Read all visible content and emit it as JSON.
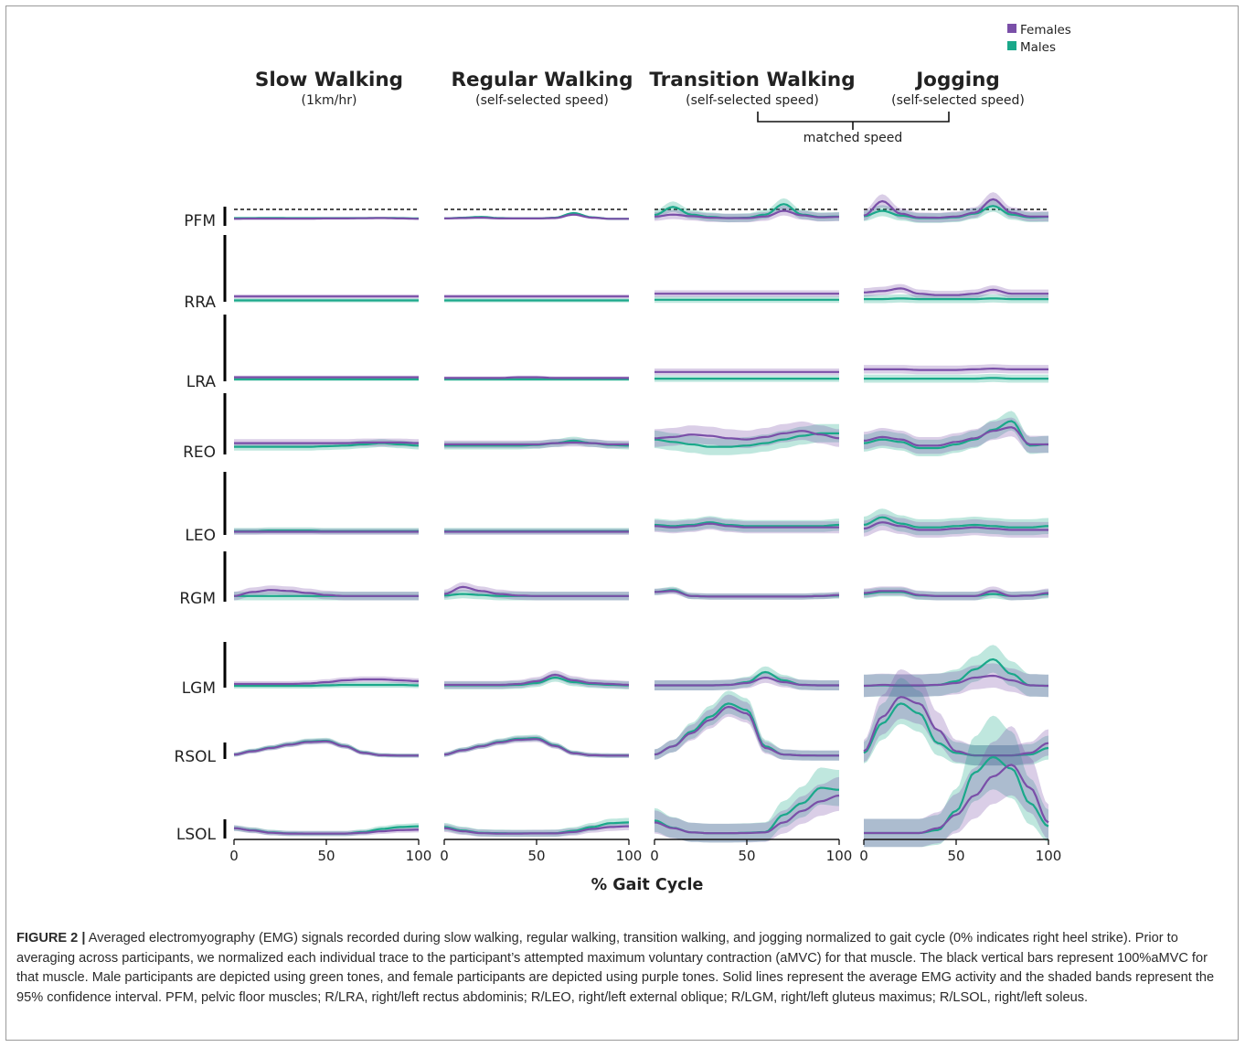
{
  "chart_data": {
    "type": "line",
    "legend": {
      "position": "top-right",
      "entries": [
        {
          "name": "Females",
          "color": "#7a4fa8"
        },
        {
          "name": "Males",
          "color": "#1aa88a"
        }
      ]
    },
    "columns": [
      {
        "title": "Slow Walking",
        "subtitle": "(1km/hr)"
      },
      {
        "title": "Regular Walking",
        "subtitle": "(self-selected speed)"
      },
      {
        "title": "Transition Walking",
        "subtitle": "(self-selected speed)"
      },
      {
        "title": "Jogging",
        "subtitle": "(self-selected speed)"
      }
    ],
    "bracket_label": "matched speed",
    "rows": [
      "PFM",
      "RRA",
      "LRA",
      "REO",
      "LEO",
      "RGM",
      "LGM",
      "RSOL",
      "LSOL"
    ],
    "xlabel": "% Gait Cycle",
    "x_ticks": [
      "0",
      "50",
      "100"
    ],
    "xlim": [
      0,
      100
    ],
    "scale_note": "vertical bars = 100%aMVC per muscle; values below are fractions of that bar",
    "x": [
      0,
      10,
      20,
      30,
      40,
      50,
      60,
      70,
      80,
      90,
      100
    ],
    "series": [
      {
        "row": "PFM",
        "col": 0,
        "female": [
          0.08,
          0.09,
          0.09,
          0.09,
          0.09,
          0.1,
          0.1,
          0.11,
          0.12,
          0.1,
          0.08
        ],
        "male": [
          0.12,
          0.12,
          0.13,
          0.12,
          0.12,
          0.12,
          0.12,
          0.12,
          0.13,
          0.12,
          0.1
        ],
        "band": 0.06
      },
      {
        "row": "PFM",
        "col": 1,
        "female": [
          0.1,
          0.12,
          0.14,
          0.1,
          0.1,
          0.1,
          0.12,
          0.3,
          0.14,
          0.08,
          0.08
        ],
        "male": [
          0.1,
          0.14,
          0.18,
          0.12,
          0.1,
          0.1,
          0.14,
          0.38,
          0.16,
          0.08,
          0.08
        ],
        "band": 0.08
      },
      {
        "row": "PFM",
        "col": 2,
        "female": [
          0.2,
          0.3,
          0.22,
          0.14,
          0.12,
          0.12,
          0.2,
          0.5,
          0.26,
          0.16,
          0.18
        ],
        "male": [
          0.28,
          0.7,
          0.3,
          0.18,
          0.12,
          0.14,
          0.3,
          0.85,
          0.3,
          0.18,
          0.2
        ],
        "band": 0.35
      },
      {
        "row": "PFM",
        "col": 3,
        "female": [
          0.25,
          1.0,
          0.35,
          0.15,
          0.14,
          0.2,
          0.4,
          1.1,
          0.4,
          0.2,
          0.2
        ],
        "male": [
          0.22,
          0.5,
          0.25,
          0.12,
          0.12,
          0.16,
          0.35,
          0.75,
          0.3,
          0.16,
          0.18
        ],
        "band": 0.4
      },
      {
        "row": "RRA",
        "col": 0,
        "female": [
          0.08,
          0.08,
          0.08,
          0.08,
          0.08,
          0.08,
          0.08,
          0.08,
          0.08,
          0.08,
          0.08
        ],
        "male": [
          0.02,
          0.02,
          0.02,
          0.02,
          0.02,
          0.02,
          0.02,
          0.02,
          0.02,
          0.02,
          0.02
        ],
        "band": 0.05
      },
      {
        "row": "RRA",
        "col": 1,
        "female": [
          0.08,
          0.08,
          0.08,
          0.08,
          0.08,
          0.08,
          0.08,
          0.08,
          0.08,
          0.08,
          0.08
        ],
        "male": [
          0.02,
          0.02,
          0.02,
          0.02,
          0.02,
          0.02,
          0.02,
          0.02,
          0.02,
          0.02,
          0.02
        ],
        "band": 0.05
      },
      {
        "row": "RRA",
        "col": 2,
        "female": [
          0.12,
          0.12,
          0.12,
          0.12,
          0.12,
          0.12,
          0.12,
          0.12,
          0.12,
          0.12,
          0.12
        ],
        "male": [
          0.03,
          0.03,
          0.03,
          0.03,
          0.03,
          0.03,
          0.03,
          0.03,
          0.03,
          0.03,
          0.03
        ],
        "band": 0.08
      },
      {
        "row": "RRA",
        "col": 3,
        "female": [
          0.14,
          0.16,
          0.2,
          0.12,
          0.1,
          0.1,
          0.12,
          0.18,
          0.12,
          0.12,
          0.12
        ],
        "male": [
          0.04,
          0.04,
          0.05,
          0.04,
          0.04,
          0.04,
          0.04,
          0.05,
          0.04,
          0.04,
          0.04
        ],
        "band": 0.1
      },
      {
        "row": "LRA",
        "col": 0,
        "female": [
          0.06,
          0.06,
          0.06,
          0.06,
          0.06,
          0.06,
          0.06,
          0.06,
          0.06,
          0.06,
          0.06
        ],
        "male": [
          0.03,
          0.03,
          0.03,
          0.03,
          0.03,
          0.03,
          0.03,
          0.03,
          0.03,
          0.03,
          0.03
        ],
        "band": 0.04
      },
      {
        "row": "LRA",
        "col": 1,
        "female": [
          0.05,
          0.05,
          0.05,
          0.05,
          0.06,
          0.06,
          0.05,
          0.05,
          0.05,
          0.05,
          0.05
        ],
        "male": [
          0.03,
          0.03,
          0.03,
          0.03,
          0.03,
          0.03,
          0.03,
          0.03,
          0.03,
          0.03,
          0.03
        ],
        "band": 0.04
      },
      {
        "row": "LRA",
        "col": 2,
        "female": [
          0.14,
          0.14,
          0.14,
          0.14,
          0.14,
          0.14,
          0.14,
          0.14,
          0.14,
          0.14,
          0.14
        ],
        "male": [
          0.04,
          0.04,
          0.04,
          0.04,
          0.04,
          0.04,
          0.04,
          0.04,
          0.04,
          0.04,
          0.04
        ],
        "band": 0.08
      },
      {
        "row": "LRA",
        "col": 3,
        "female": [
          0.18,
          0.18,
          0.18,
          0.17,
          0.17,
          0.17,
          0.18,
          0.19,
          0.18,
          0.18,
          0.18
        ],
        "male": [
          0.04,
          0.04,
          0.04,
          0.04,
          0.04,
          0.04,
          0.04,
          0.05,
          0.04,
          0.04,
          0.04
        ],
        "band": 0.1
      },
      {
        "row": "REO",
        "col": 0,
        "female": [
          0.14,
          0.14,
          0.14,
          0.14,
          0.14,
          0.14,
          0.14,
          0.15,
          0.15,
          0.15,
          0.14
        ],
        "male": [
          0.08,
          0.08,
          0.08,
          0.08,
          0.08,
          0.09,
          0.1,
          0.12,
          0.14,
          0.12,
          0.1
        ],
        "band": 0.1
      },
      {
        "row": "REO",
        "col": 1,
        "female": [
          0.12,
          0.12,
          0.12,
          0.12,
          0.12,
          0.12,
          0.14,
          0.15,
          0.14,
          0.12,
          0.12
        ],
        "male": [
          0.1,
          0.1,
          0.1,
          0.1,
          0.1,
          0.11,
          0.14,
          0.18,
          0.14,
          0.11,
          0.1
        ],
        "band": 0.1
      },
      {
        "row": "REO",
        "col": 2,
        "female": [
          0.22,
          0.24,
          0.28,
          0.26,
          0.22,
          0.2,
          0.24,
          0.3,
          0.34,
          0.28,
          0.22
        ],
        "male": [
          0.2,
          0.16,
          0.12,
          0.08,
          0.08,
          0.1,
          0.14,
          0.2,
          0.26,
          0.3,
          0.3
        ],
        "band": 0.22
      },
      {
        "row": "REO",
        "col": 3,
        "female": [
          0.18,
          0.24,
          0.2,
          0.1,
          0.1,
          0.16,
          0.22,
          0.34,
          0.4,
          0.12,
          0.12
        ],
        "male": [
          0.14,
          0.2,
          0.16,
          0.06,
          0.06,
          0.12,
          0.2,
          0.36,
          0.5,
          0.1,
          0.12
        ],
        "band": 0.22
      },
      {
        "row": "LEO",
        "col": 0,
        "female": [
          0.05,
          0.05,
          0.05,
          0.05,
          0.05,
          0.05,
          0.05,
          0.05,
          0.05,
          0.05,
          0.05
        ],
        "male": [
          0.06,
          0.06,
          0.07,
          0.07,
          0.07,
          0.06,
          0.06,
          0.06,
          0.06,
          0.06,
          0.06
        ],
        "band": 0.08
      },
      {
        "row": "LEO",
        "col": 1,
        "female": [
          0.05,
          0.05,
          0.05,
          0.05,
          0.05,
          0.05,
          0.05,
          0.05,
          0.05,
          0.05,
          0.05
        ],
        "male": [
          0.06,
          0.06,
          0.06,
          0.06,
          0.06,
          0.06,
          0.06,
          0.06,
          0.06,
          0.06,
          0.06
        ],
        "band": 0.08
      },
      {
        "row": "LEO",
        "col": 2,
        "female": [
          0.14,
          0.12,
          0.14,
          0.18,
          0.14,
          0.12,
          0.12,
          0.12,
          0.12,
          0.12,
          0.12
        ],
        "male": [
          0.16,
          0.14,
          0.16,
          0.2,
          0.16,
          0.14,
          0.14,
          0.14,
          0.14,
          0.14,
          0.16
        ],
        "band": 0.15
      },
      {
        "row": "LEO",
        "col": 3,
        "female": [
          0.1,
          0.2,
          0.14,
          0.08,
          0.08,
          0.1,
          0.12,
          0.1,
          0.08,
          0.08,
          0.08
        ],
        "male": [
          0.16,
          0.28,
          0.18,
          0.12,
          0.12,
          0.14,
          0.16,
          0.14,
          0.12,
          0.12,
          0.14
        ],
        "band": 0.2
      },
      {
        "row": "RGM",
        "col": 0,
        "female": [
          0.04,
          0.12,
          0.16,
          0.14,
          0.1,
          0.06,
          0.04,
          0.04,
          0.04,
          0.04,
          0.04
        ],
        "male": [
          0.04,
          0.04,
          0.04,
          0.04,
          0.04,
          0.04,
          0.04,
          0.04,
          0.04,
          0.04,
          0.04
        ],
        "band": 0.14
      },
      {
        "row": "RGM",
        "col": 1,
        "female": [
          0.08,
          0.22,
          0.14,
          0.08,
          0.05,
          0.04,
          0.04,
          0.04,
          0.04,
          0.04,
          0.04
        ],
        "male": [
          0.05,
          0.08,
          0.06,
          0.04,
          0.04,
          0.04,
          0.04,
          0.04,
          0.04,
          0.04,
          0.04
        ],
        "band": 0.14
      },
      {
        "row": "RGM",
        "col": 2,
        "female": [
          0.12,
          0.14,
          0.04,
          0.03,
          0.03,
          0.03,
          0.03,
          0.03,
          0.03,
          0.04,
          0.06
        ],
        "male": [
          0.12,
          0.16,
          0.04,
          0.03,
          0.03,
          0.03,
          0.03,
          0.03,
          0.03,
          0.04,
          0.05
        ],
        "band": 0.1
      },
      {
        "row": "RGM",
        "col": 3,
        "female": [
          0.1,
          0.14,
          0.14,
          0.06,
          0.04,
          0.04,
          0.04,
          0.14,
          0.04,
          0.05,
          0.1
        ],
        "male": [
          0.08,
          0.12,
          0.12,
          0.05,
          0.04,
          0.04,
          0.04,
          0.08,
          0.04,
          0.05,
          0.08
        ],
        "band": 0.14
      },
      {
        "row": "LGM",
        "col": 0,
        "female": [
          0.08,
          0.08,
          0.08,
          0.08,
          0.09,
          0.12,
          0.16,
          0.18,
          0.18,
          0.16,
          0.14
        ],
        "male": [
          0.04,
          0.04,
          0.04,
          0.04,
          0.04,
          0.05,
          0.06,
          0.06,
          0.06,
          0.06,
          0.05
        ],
        "band": 0.1
      },
      {
        "row": "LGM",
        "col": 1,
        "female": [
          0.06,
          0.06,
          0.06,
          0.06,
          0.08,
          0.14,
          0.28,
          0.16,
          0.1,
          0.08,
          0.06
        ],
        "male": [
          0.05,
          0.05,
          0.05,
          0.05,
          0.06,
          0.1,
          0.22,
          0.12,
          0.08,
          0.06,
          0.05
        ],
        "band": 0.14
      },
      {
        "row": "LGM",
        "col": 2,
        "female": [
          0.05,
          0.05,
          0.05,
          0.05,
          0.06,
          0.1,
          0.22,
          0.12,
          0.06,
          0.05,
          0.05
        ],
        "male": [
          0.05,
          0.05,
          0.05,
          0.05,
          0.06,
          0.12,
          0.34,
          0.16,
          0.06,
          0.05,
          0.05
        ],
        "band": 0.18
      },
      {
        "row": "LGM",
        "col": 3,
        "female": [
          0.04,
          0.06,
          0.05,
          0.05,
          0.06,
          0.1,
          0.22,
          0.26,
          0.16,
          0.05,
          0.04
        ],
        "male": [
          0.04,
          0.05,
          0.04,
          0.04,
          0.06,
          0.14,
          0.4,
          0.62,
          0.3,
          0.05,
          0.04
        ],
        "band": 0.4
      },
      {
        "row": "RSOL",
        "col": 0,
        "female": [
          0.1,
          0.3,
          0.5,
          0.7,
          0.86,
          0.9,
          0.6,
          0.2,
          0.06,
          0.04,
          0.04
        ],
        "male": [
          0.1,
          0.32,
          0.52,
          0.72,
          0.9,
          0.94,
          0.62,
          0.22,
          0.06,
          0.04,
          0.04
        ],
        "band": 0.2
      },
      {
        "row": "RSOL",
        "col": 1,
        "female": [
          0.1,
          0.36,
          0.6,
          0.84,
          1.0,
          1.04,
          0.62,
          0.18,
          0.06,
          0.04,
          0.04
        ],
        "male": [
          0.1,
          0.38,
          0.62,
          0.88,
          1.06,
          1.1,
          0.66,
          0.2,
          0.06,
          0.04,
          0.04
        ],
        "band": 0.22
      },
      {
        "row": "RSOL",
        "col": 2,
        "female": [
          0.1,
          0.6,
          1.4,
          2.2,
          3.0,
          2.6,
          0.5,
          0.1,
          0.05,
          0.04,
          0.04
        ],
        "male": [
          0.1,
          0.6,
          1.5,
          2.4,
          3.2,
          2.8,
          0.6,
          0.1,
          0.05,
          0.04,
          0.04
        ],
        "band": 0.5
      },
      {
        "row": "RSOL",
        "col": 3,
        "female": [
          0.3,
          2.4,
          3.6,
          3.2,
          1.6,
          0.3,
          0.05,
          0.05,
          0.05,
          0.2,
          0.8
        ],
        "male": [
          0.2,
          2.0,
          3.2,
          2.6,
          0.8,
          0.2,
          0.05,
          0.05,
          0.05,
          0.1,
          0.5
        ],
        "band": 1.0
      },
      {
        "row": "LSOL",
        "col": 0,
        "female": [
          0.3,
          0.18,
          0.06,
          0.02,
          0.02,
          0.02,
          0.02,
          0.06,
          0.14,
          0.2,
          0.22
        ],
        "male": [
          0.3,
          0.2,
          0.08,
          0.03,
          0.02,
          0.02,
          0.02,
          0.1,
          0.26,
          0.36,
          0.4
        ],
        "band": 0.22
      },
      {
        "row": "LSOL",
        "col": 1,
        "female": [
          0.3,
          0.14,
          0.04,
          0.02,
          0.02,
          0.03,
          0.03,
          0.1,
          0.26,
          0.36,
          0.4
        ],
        "male": [
          0.36,
          0.18,
          0.06,
          0.04,
          0.03,
          0.03,
          0.04,
          0.16,
          0.36,
          0.56,
          0.6
        ],
        "band": 0.3
      },
      {
        "row": "LSOL",
        "col": 2,
        "female": [
          0.6,
          0.3,
          0.08,
          0.04,
          0.04,
          0.05,
          0.08,
          0.6,
          1.2,
          1.7,
          2.0
        ],
        "male": [
          0.7,
          0.32,
          0.08,
          0.04,
          0.04,
          0.06,
          0.1,
          1.0,
          1.6,
          2.4,
          2.3
        ],
        "band": 0.8
      },
      {
        "row": "LSOL",
        "col": 3,
        "female": [
          0.05,
          0.05,
          0.05,
          0.05,
          0.3,
          1.0,
          2.0,
          3.0,
          3.6,
          2.4,
          0.6
        ],
        "male": [
          0.05,
          0.05,
          0.05,
          0.05,
          0.2,
          1.2,
          3.2,
          4.0,
          3.4,
          1.6,
          0.4
        ],
        "band": 1.2
      }
    ]
  },
  "caption": {
    "label": "FIGURE 2 |",
    "text": "Averaged electromyography (EMG) signals recorded during slow walking, regular walking, transition walking, and jogging normalized to gait cycle (0% indicates right heel strike). Prior to averaging across participants, we normalized each individual trace to the participant’s attempted maximum voluntary contraction (aMVC) for that muscle. The black vertical bars represent 100%aMVC for that muscle. Male participants are depicted using green tones, and female participants are depicted using purple tones. Solid lines represent the average EMG activity and the shaded bands represent the 95% confidence interval. PFM, pelvic floor muscles; R/LRA, right/left rectus abdominis; R/LEO, right/left external oblique; R/LGM, right/left gluteus maximus; R/LSOL, right/left soleus."
  }
}
